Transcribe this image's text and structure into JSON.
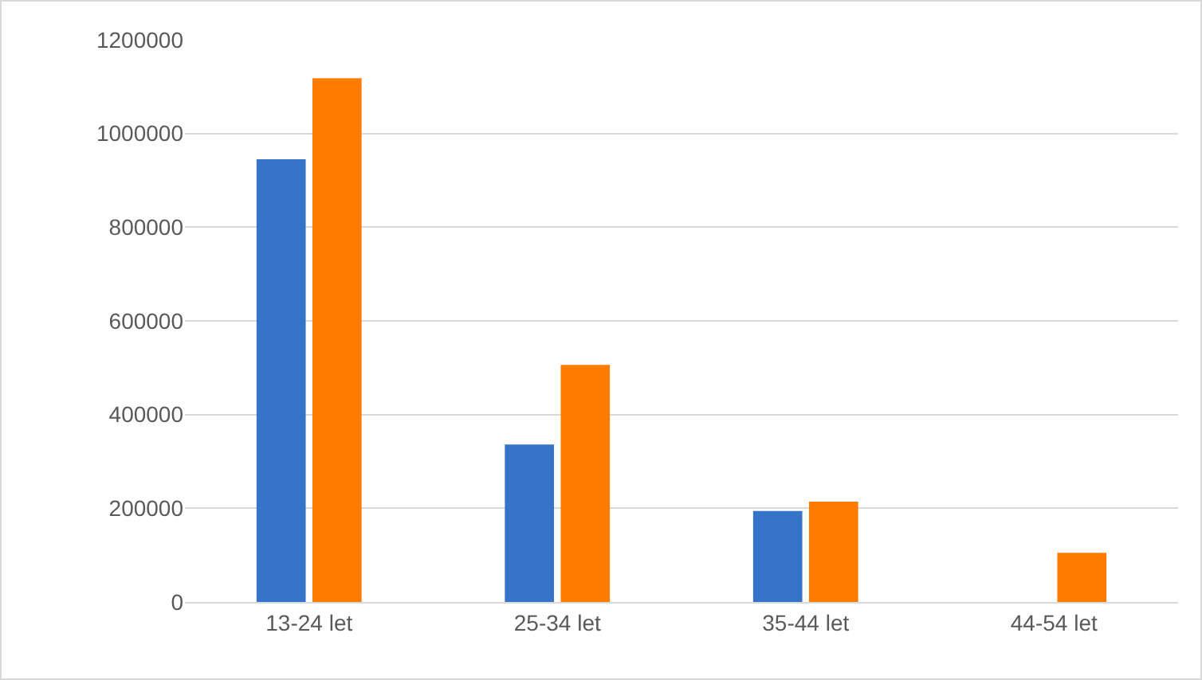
{
  "chart_data": {
    "type": "bar",
    "categories": [
      "13-24 let",
      "25-34 let",
      "35-44 let",
      "44-54 let"
    ],
    "series": [
      {
        "color": "#3574c8",
        "values": [
          945000,
          336000,
          194000,
          0
        ]
      },
      {
        "color": "#ff7c00",
        "values": [
          1118000,
          506000,
          214000,
          105000
        ]
      }
    ],
    "ylim": [
      0,
      1200000
    ],
    "yticks": [
      0,
      200000,
      400000,
      600000,
      800000,
      1000000,
      1200000
    ],
    "grid": "y",
    "legend": false
  }
}
